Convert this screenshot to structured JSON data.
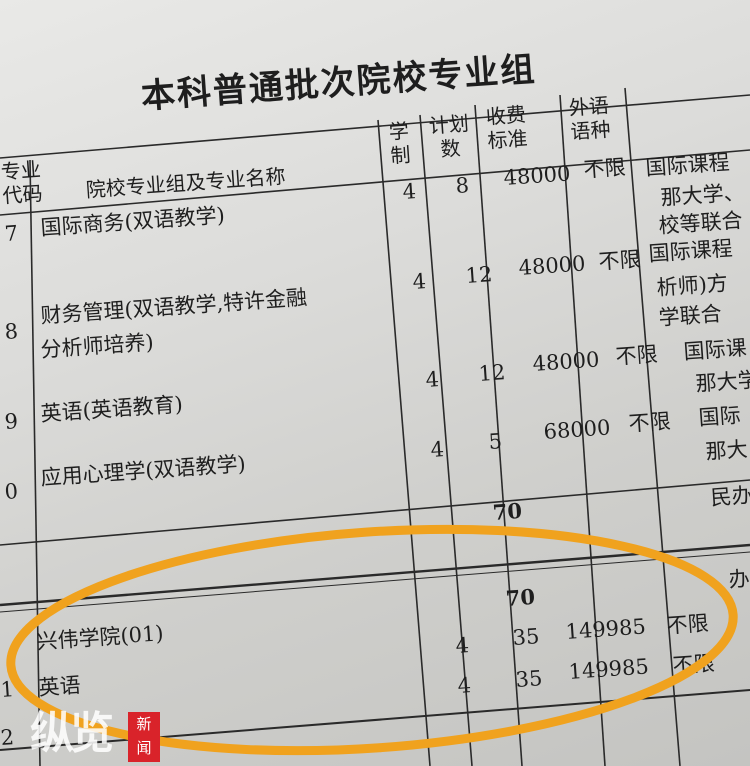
{
  "title": "本科普通批次院校专业组",
  "headers": {
    "code_top": "专业",
    "code_bottom": "代码",
    "name": "院校专业组及专业名称",
    "years_top": "学",
    "years_bottom": "制",
    "plan_top": "计划",
    "plan_bottom": "数",
    "fee_top": "收费",
    "fee_bottom": "标准",
    "lang_top": "外语",
    "lang_bottom": "语种"
  },
  "group_row": {
    "years": "4",
    "plan": "8",
    "fee": "48000",
    "lang": "不限",
    "notes": [
      "国际课程",
      "那大学、",
      "校等联合"
    ]
  },
  "rows": [
    {
      "code": "7",
      "name": "国际商务(双语教学)",
      "years": "4",
      "plan": "12",
      "fee": "48000",
      "lang": "不限",
      "notes": [
        "国际课程",
        "析师)方",
        "学联合"
      ]
    },
    {
      "code": "8",
      "name": "财务管理(双语教学,特许金融",
      "name2": "分析师培养)",
      "years": "4",
      "plan": "12",
      "fee": "48000",
      "lang": "不限",
      "notes": [
        "国际课",
        "那大学"
      ]
    },
    {
      "code": "9",
      "name": "英语(英语教育)",
      "years": "4",
      "plan": "5",
      "fee": "68000",
      "lang": "不限",
      "notes": [
        "国际",
        "那大"
      ]
    },
    {
      "code": "0",
      "name": "应用心理学(双语教学)"
    }
  ],
  "subtotal": "70",
  "subtotal_note": "民办",
  "highlight": {
    "total": "70",
    "top_right_note": "办",
    "group": {
      "name": "兴伟学院(01)",
      "years": "4",
      "plan": "35",
      "fee": "149985",
      "lang": "不限"
    },
    "major": {
      "code": "1",
      "name": "英语",
      "years": "4",
      "plan": "35",
      "fee": "149985",
      "lang": "不限"
    },
    "next_code": "2",
    "circle_color": "#f0a21e"
  },
  "watermark": {
    "logo": "纵览",
    "badge": "新闻",
    "badge_color": "#d9232a"
  }
}
